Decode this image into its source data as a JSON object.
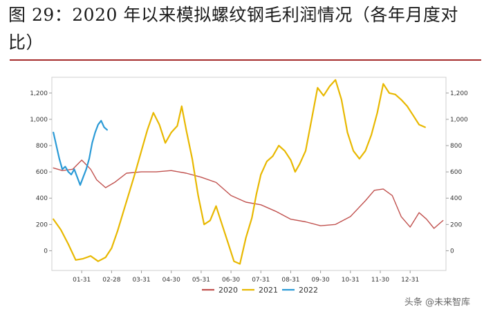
{
  "header": {
    "title": "图 29：2020 年以来模拟螺纹钢毛利润情况（各年月度对比）"
  },
  "watermark": "头条 @未来智库",
  "colors": {
    "rule": "#a52a2a",
    "grid": "#cfcfcf"
  },
  "chart_data": {
    "type": "line",
    "title": "",
    "xlabel": "",
    "ylabel": "",
    "ylim": [
      -150,
      1320
    ],
    "grid": "none",
    "legend_position": "bottom",
    "x_tick_labels": [
      "01-31",
      "02-28",
      "03-31",
      "04-30",
      "05-31",
      "06-30",
      "07-31",
      "08-31",
      "09-30",
      "10-31",
      "11-30",
      "12-31"
    ],
    "y_ticks_left": [
      "1,200",
      "1,000",
      "800",
      "600",
      "400",
      "200",
      "0"
    ],
    "y_ticks_right": [
      "1,200",
      "1,000",
      "800",
      "600",
      "400",
      "200",
      "0"
    ],
    "series": [
      {
        "name": "2020",
        "color": "#c0504d",
        "points": [
          [
            0.05,
            630
          ],
          [
            0.35,
            610
          ],
          [
            0.7,
            620
          ],
          [
            1.0,
            690
          ],
          [
            1.3,
            620
          ],
          [
            1.5,
            540
          ],
          [
            1.8,
            480
          ],
          [
            2.1,
            520
          ],
          [
            2.5,
            590
          ],
          [
            3.0,
            600
          ],
          [
            3.5,
            600
          ],
          [
            4.0,
            610
          ],
          [
            4.5,
            590
          ],
          [
            5.0,
            560
          ],
          [
            5.5,
            520
          ],
          [
            6.0,
            420
          ],
          [
            6.5,
            370
          ],
          [
            7.0,
            350
          ],
          [
            7.5,
            300
          ],
          [
            8.0,
            240
          ],
          [
            8.5,
            220
          ],
          [
            9.0,
            190
          ],
          [
            9.5,
            200
          ],
          [
            10.0,
            260
          ],
          [
            10.5,
            380
          ],
          [
            10.8,
            460
          ],
          [
            11.1,
            470
          ],
          [
            11.4,
            420
          ],
          [
            11.7,
            260
          ],
          [
            12.0,
            180
          ],
          [
            12.3,
            290
          ],
          [
            12.55,
            240
          ],
          [
            12.8,
            170
          ],
          [
            13.1,
            230
          ]
        ]
      },
      {
        "name": "2021",
        "color": "#e8b800",
        "points": [
          [
            0.05,
            240
          ],
          [
            0.3,
            160
          ],
          [
            0.55,
            50
          ],
          [
            0.8,
            -70
          ],
          [
            1.05,
            -60
          ],
          [
            1.3,
            -40
          ],
          [
            1.55,
            -80
          ],
          [
            1.8,
            -50
          ],
          [
            2.0,
            20
          ],
          [
            2.2,
            150
          ],
          [
            2.4,
            300
          ],
          [
            2.6,
            450
          ],
          [
            2.8,
            600
          ],
          [
            3.0,
            760
          ],
          [
            3.2,
            920
          ],
          [
            3.4,
            1050
          ],
          [
            3.6,
            960
          ],
          [
            3.8,
            820
          ],
          [
            4.0,
            900
          ],
          [
            4.2,
            950
          ],
          [
            4.35,
            1100
          ],
          [
            4.5,
            920
          ],
          [
            4.7,
            700
          ],
          [
            4.9,
            420
          ],
          [
            5.1,
            200
          ],
          [
            5.3,
            230
          ],
          [
            5.5,
            340
          ],
          [
            5.7,
            200
          ],
          [
            5.9,
            60
          ],
          [
            6.1,
            -80
          ],
          [
            6.3,
            -100
          ],
          [
            6.5,
            100
          ],
          [
            6.7,
            250
          ],
          [
            6.85,
            430
          ],
          [
            7.0,
            580
          ],
          [
            7.2,
            680
          ],
          [
            7.4,
            720
          ],
          [
            7.6,
            800
          ],
          [
            7.8,
            760
          ],
          [
            8.0,
            690
          ],
          [
            8.15,
            600
          ],
          [
            8.3,
            660
          ],
          [
            8.5,
            760
          ],
          [
            8.7,
            1000
          ],
          [
            8.9,
            1240
          ],
          [
            9.1,
            1180
          ],
          [
            9.3,
            1250
          ],
          [
            9.5,
            1300
          ],
          [
            9.7,
            1150
          ],
          [
            9.9,
            900
          ],
          [
            10.1,
            760
          ],
          [
            10.3,
            700
          ],
          [
            10.5,
            760
          ],
          [
            10.7,
            880
          ],
          [
            10.9,
            1050
          ],
          [
            11.1,
            1270
          ],
          [
            11.3,
            1200
          ],
          [
            11.5,
            1190
          ],
          [
            11.7,
            1150
          ],
          [
            11.9,
            1100
          ],
          [
            12.1,
            1030
          ],
          [
            12.3,
            960
          ],
          [
            12.5,
            940
          ]
        ]
      },
      {
        "name": "2022",
        "color": "#2a9ad6",
        "points": [
          [
            0.05,
            900
          ],
          [
            0.15,
            800
          ],
          [
            0.25,
            700
          ],
          [
            0.35,
            620
          ],
          [
            0.45,
            640
          ],
          [
            0.55,
            600
          ],
          [
            0.65,
            580
          ],
          [
            0.75,
            620
          ],
          [
            0.85,
            560
          ],
          [
            0.95,
            500
          ],
          [
            1.05,
            560
          ],
          [
            1.15,
            620
          ],
          [
            1.25,
            700
          ],
          [
            1.35,
            820
          ],
          [
            1.45,
            900
          ],
          [
            1.55,
            960
          ],
          [
            1.65,
            990
          ],
          [
            1.75,
            940
          ],
          [
            1.85,
            920
          ]
        ]
      }
    ]
  }
}
